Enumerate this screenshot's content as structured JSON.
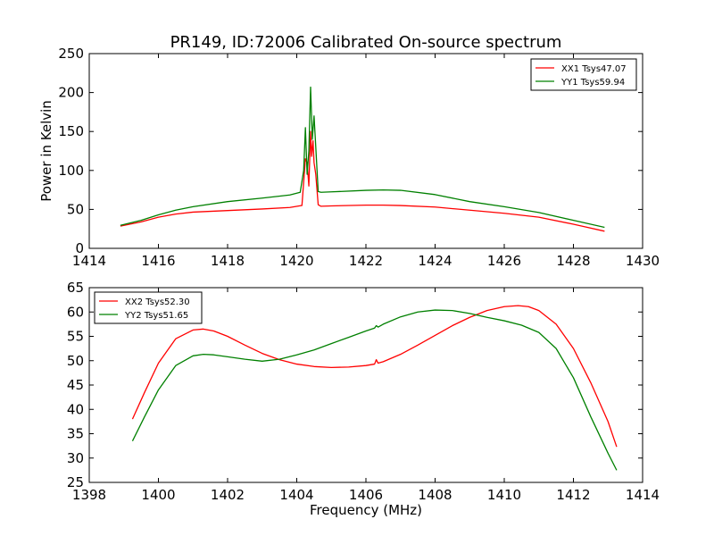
{
  "figure": {
    "title": "PR149, ID:72006 Calibrated On-source spectrum"
  },
  "colors": {
    "xx": "#ff0000",
    "yy": "#008000",
    "axes": "#000000",
    "background": "#ffffff"
  },
  "chart_data": [
    {
      "type": "line",
      "title": "PR149, ID:72006 Calibrated On-source spectrum",
      "xlabel": "",
      "ylabel": "Power in Kelvin",
      "xlim": [
        1414,
        1430
      ],
      "ylim": [
        0,
        250
      ],
      "xticks": [
        1414,
        1416,
        1418,
        1420,
        1422,
        1424,
        1426,
        1428,
        1430
      ],
      "yticks": [
        0,
        50,
        100,
        150,
        200,
        250
      ],
      "grid": false,
      "legend_position": "top-right",
      "series": [
        {
          "name": "XX1 Tsys47.07",
          "color": "#ff0000",
          "x": [
            1414.9,
            1415.5,
            1416.0,
            1416.5,
            1417.0,
            1418.0,
            1419.0,
            1419.8,
            1420.15,
            1420.25,
            1420.3,
            1420.35,
            1420.4,
            1420.43,
            1420.47,
            1420.5,
            1420.55,
            1420.62,
            1420.7,
            1421.0,
            1422.0,
            1422.5,
            1423.0,
            1424.0,
            1425.0,
            1426.0,
            1427.0,
            1428.0,
            1428.9
          ],
          "y": [
            28.5,
            34,
            40,
            44,
            46.5,
            48.5,
            50.5,
            52.5,
            55,
            115,
            110,
            80,
            150,
            118,
            138,
            110,
            95,
            56,
            54,
            54.5,
            55.5,
            55.5,
            55,
            53,
            49,
            45,
            40,
            31,
            22
          ]
        },
        {
          "name": "YY1 Tsys59.94",
          "color": "#008000",
          "x": [
            1414.9,
            1415.5,
            1416.0,
            1416.5,
            1417.0,
            1418.0,
            1419.0,
            1419.8,
            1420.1,
            1420.2,
            1420.25,
            1420.3,
            1420.35,
            1420.4,
            1420.45,
            1420.5,
            1420.55,
            1420.62,
            1420.7,
            1421.0,
            1422.0,
            1422.5,
            1423.0,
            1424.0,
            1425.0,
            1426.0,
            1427.0,
            1428.0,
            1428.9
          ],
          "y": [
            29.5,
            36,
            43,
            49,
            53.5,
            60,
            64.5,
            68.5,
            72,
            100,
            155,
            95,
            125,
            207,
            140,
            170,
            130,
            73,
            72,
            72.5,
            74.5,
            75,
            74.5,
            69,
            60,
            53.5,
            46,
            36,
            27
          ]
        }
      ]
    },
    {
      "type": "line",
      "title": "",
      "xlabel": "Frequency (MHz)",
      "ylabel": "",
      "xlim": [
        1398,
        1414
      ],
      "ylim": [
        25,
        65
      ],
      "xticks": [
        1398,
        1400,
        1402,
        1404,
        1406,
        1408,
        1410,
        1412,
        1414
      ],
      "yticks": [
        25,
        30,
        35,
        40,
        45,
        50,
        55,
        60,
        65
      ],
      "grid": false,
      "legend_position": "top-left",
      "series": [
        {
          "name": "XX2 Tsys52.30",
          "color": "#ff0000",
          "x": [
            1399.25,
            1399.6,
            1400.0,
            1400.5,
            1401.0,
            1401.3,
            1401.6,
            1402.0,
            1402.5,
            1403.0,
            1403.5,
            1404.0,
            1404.5,
            1405.0,
            1405.5,
            1406.0,
            1406.25,
            1406.3,
            1406.35,
            1406.5,
            1407.0,
            1407.5,
            1408.0,
            1408.5,
            1409.0,
            1409.5,
            1410.0,
            1410.4,
            1410.7,
            1411.0,
            1411.5,
            1412.0,
            1412.5,
            1413.0,
            1413.25
          ],
          "y": [
            38,
            43.5,
            49.5,
            54.5,
            56.3,
            56.5,
            56.1,
            55,
            53.2,
            51.5,
            50.2,
            49.3,
            48.8,
            48.6,
            48.7,
            49,
            49.3,
            50.2,
            49.5,
            49.8,
            51.3,
            53.2,
            55.2,
            57.2,
            58.9,
            60.3,
            61.1,
            61.3,
            61.1,
            60.3,
            57.5,
            52.5,
            45.5,
            37.5,
            32.3
          ]
        },
        {
          "name": "YY2 Tsys51.65",
          "color": "#008000",
          "x": [
            1399.25,
            1399.6,
            1400.0,
            1400.5,
            1401.0,
            1401.3,
            1401.6,
            1402.0,
            1402.5,
            1403.0,
            1403.5,
            1404.0,
            1404.5,
            1405.0,
            1405.5,
            1406.0,
            1406.25,
            1406.3,
            1406.35,
            1406.5,
            1407.0,
            1407.5,
            1408.0,
            1408.5,
            1409.0,
            1409.5,
            1410.0,
            1410.5,
            1411.0,
            1411.5,
            1412.0,
            1412.5,
            1413.0,
            1413.25
          ],
          "y": [
            33.5,
            38.5,
            44,
            49,
            51,
            51.3,
            51.2,
            50.8,
            50.3,
            49.9,
            50.3,
            51.2,
            52.2,
            53.5,
            54.8,
            56.1,
            56.7,
            57.2,
            56.9,
            57.5,
            59,
            60,
            60.4,
            60.3,
            59.7,
            58.9,
            58.2,
            57.3,
            55.8,
            52.5,
            46.5,
            38.5,
            31,
            27.5
          ]
        }
      ]
    }
  ]
}
